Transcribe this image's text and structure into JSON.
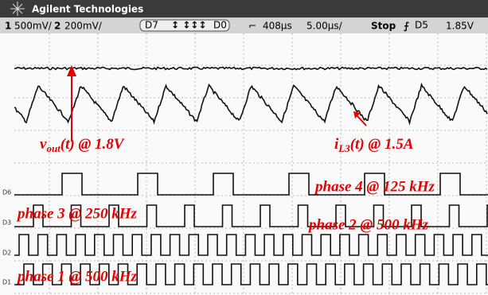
{
  "header": {
    "brand": "Agilent Technologies"
  },
  "status_bar": {
    "ch1_num": "1",
    "ch1_scale": "500mV/",
    "ch2_num": "2",
    "ch2_scale": "200mV/",
    "digital_hi": "D7",
    "digital_lo": "D0",
    "delay": "408μs",
    "timebase": "5.00μs/",
    "run_state": "Stop",
    "trigger_source": "D5",
    "trigger_level": "1.85V"
  },
  "channel_labels": [
    "D6",
    "D3",
    "D2",
    "D1"
  ],
  "annotations": {
    "v_out": {
      "base": "v",
      "sub": "out",
      "rest": "(t) @ 1.8V"
    },
    "i_l3": {
      "base": "i",
      "sub": "L3",
      "rest": "(t) @ 1.5A"
    },
    "phase_4": "phase 4 @ 125  kHz",
    "phase_3": "phase 3 @ 250 kHz",
    "phase_2": "phase 2 @ 500 kHz",
    "phase_1": "phase 1 @ 500 kHz"
  }
}
